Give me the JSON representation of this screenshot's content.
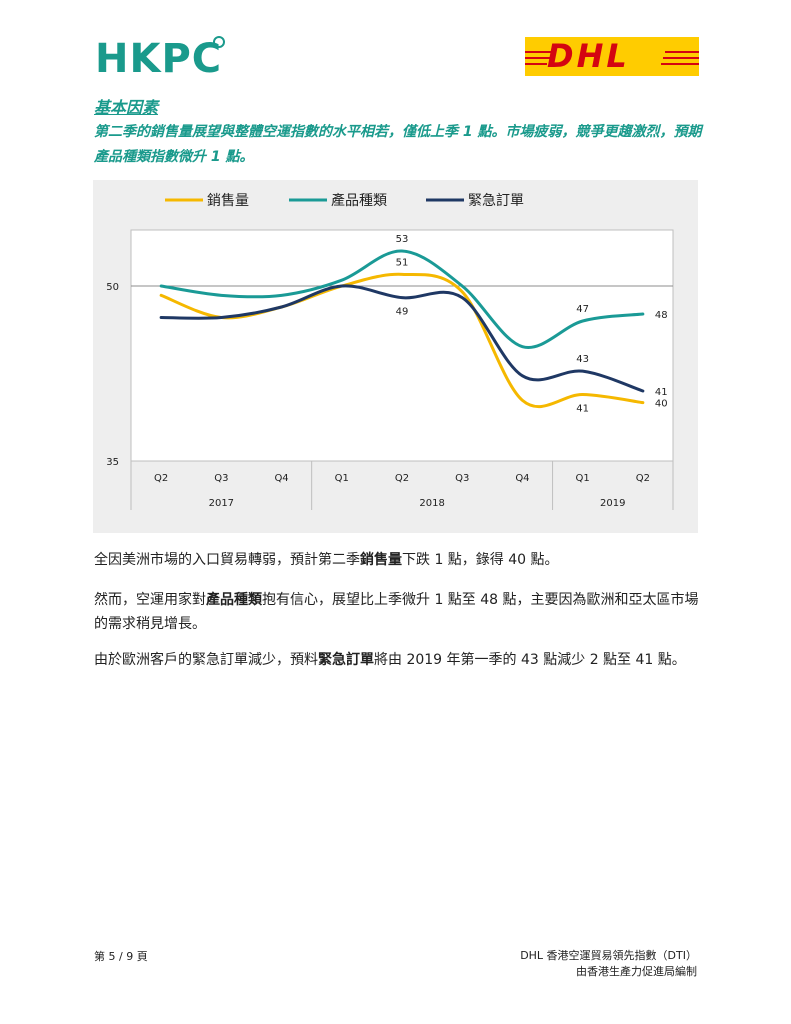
{
  "header": {
    "hkpc_logo": "HKPC",
    "dhl_logo": "DHL"
  },
  "section_title": "基本因素",
  "intro": "第二季的銷售量展望與整體空運指數的水平相若，僅低上季 1 點。市場疲弱，競爭更趨激烈，預期產品種類指數微升 1 點。",
  "paragraphs": {
    "p1": {
      "before": "全因美洲市場的入口貿易轉弱，預計第二季",
      "bold": "銷售量",
      "after": "下跌 1 點，錄得 40 點。"
    },
    "p2": {
      "before": "然而，空運用家對",
      "bold": "產品種類",
      "after": "抱有信心，展望比上季微升 1 點至 48 點，主要因為歐洲和亞太區市場的需求稍見增長。"
    },
    "p3": {
      "before": "由於歐洲客戶的緊急訂單減少，預料",
      "bold": "緊急訂單",
      "after": "將由 2019 年第一季的 43 點減少 2 點至 41 點。"
    }
  },
  "footer": {
    "page": "第 5 / 9 頁",
    "right_line1": "DHL 香港空運貿易領先指數（DTI）",
    "right_line2": "由香港生產力促進局編制"
  },
  "chart_data": {
    "type": "line",
    "categories": [
      "Q2",
      "Q3",
      "Q4",
      "Q1",
      "Q2",
      "Q3",
      "Q4",
      "Q1",
      "Q2"
    ],
    "year_groups": [
      {
        "label": "2017",
        "span": [
          0,
          2
        ]
      },
      {
        "label": "2018",
        "span": [
          3,
          6
        ]
      },
      {
        "label": "2019",
        "span": [
          7,
          8
        ]
      }
    ],
    "ylim": [
      35,
      50
    ],
    "yticks": [
      35,
      50
    ],
    "reference_line": 50,
    "series": [
      {
        "name": "銷售量",
        "color": "#f5b800",
        "values": [
          49.2,
          47.3,
          48.2,
          50.0,
          51.0,
          49.5,
          40.2,
          40.7,
          40.0
        ],
        "labels": [
          {
            "index": 4,
            "text": "51",
            "pos": "above"
          },
          {
            "index": 7,
            "text": "41",
            "pos": "below"
          },
          {
            "index": 8,
            "text": "40",
            "pos": "right"
          }
        ]
      },
      {
        "name": "產品種類",
        "color": "#1a9a96",
        "values": [
          50.0,
          49.2,
          49.2,
          50.5,
          53.0,
          50.0,
          44.8,
          47.0,
          47.6
        ],
        "labels": [
          {
            "index": 4,
            "text": "53",
            "pos": "above"
          },
          {
            "index": 7,
            "text": "47",
            "pos": "above"
          },
          {
            "index": 8,
            "text": "48",
            "pos": "right"
          }
        ]
      },
      {
        "name": "緊急訂單",
        "color": "#1f3864",
        "values": [
          47.3,
          47.3,
          48.2,
          50.0,
          49.0,
          49.0,
          42.3,
          42.7,
          41.0
        ],
        "labels": [
          {
            "index": 4,
            "text": "49",
            "pos": "below"
          },
          {
            "index": 7,
            "text": "43",
            "pos": "above"
          },
          {
            "index": 8,
            "text": "41",
            "pos": "right"
          }
        ]
      }
    ],
    "legend_position": "top"
  }
}
